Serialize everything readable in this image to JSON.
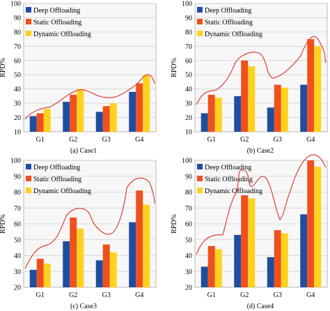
{
  "figure": {
    "panels": [
      {
        "caption": "(a) Case1"
      },
      {
        "caption": "(b) Case2"
      },
      {
        "caption": "(c) Case3"
      },
      {
        "caption": "(d) Case4"
      }
    ]
  },
  "chart_data": [
    {
      "type": "bar",
      "categories": [
        "G1",
        "G2",
        "G3",
        "G4"
      ],
      "series": [
        {
          "name": "Deep Offloading",
          "color": "#1f4e9e",
          "values": [
            21,
            31,
            24,
            38
          ]
        },
        {
          "name": "Static Offloading",
          "color": "#f0501e",
          "values": [
            23,
            36,
            28,
            44
          ]
        },
        {
          "name": "Dynamic Offloading",
          "color": "#ffd21e",
          "values": [
            26,
            40,
            30,
            50
          ]
        }
      ],
      "ylabel": "RPD%",
      "ylim": [
        10,
        100
      ],
      "yticks": [
        10,
        20,
        30,
        40,
        50,
        60,
        70,
        80,
        90,
        100
      ],
      "grid": true,
      "legend": "top-left",
      "caption": "(a) Case1"
    },
    {
      "type": "bar",
      "categories": [
        "G1",
        "G2",
        "G3",
        "G4"
      ],
      "series": [
        {
          "name": "Deep Offloading",
          "color": "#1f4e9e",
          "values": [
            23,
            35,
            27,
            43
          ]
        },
        {
          "name": "Static Offloading",
          "color": "#f0501e",
          "values": [
            36,
            60,
            43,
            75
          ]
        },
        {
          "name": "Dynamic Offloading",
          "color": "#ffd21e",
          "values": [
            34,
            56,
            41,
            70
          ]
        }
      ],
      "ylabel": "RPD%",
      "ylim": [
        10,
        100
      ],
      "yticks": [
        10,
        20,
        30,
        40,
        50,
        60,
        70,
        80,
        90,
        100
      ],
      "grid": true,
      "legend": "top-left",
      "caption": "(b) Case2"
    },
    {
      "type": "bar",
      "categories": [
        "G1",
        "G2",
        "G3",
        "G4"
      ],
      "series": [
        {
          "name": "Deep Offloading",
          "color": "#1f4e9e",
          "values": [
            31,
            49,
            37,
            61
          ]
        },
        {
          "name": "Static Offloading",
          "color": "#f0501e",
          "values": [
            38,
            64,
            47,
            81
          ]
        },
        {
          "name": "Dynamic Offloading",
          "color": "#ffd21e",
          "values": [
            35,
            57,
            42,
            72
          ]
        }
      ],
      "ylabel": "RPD%",
      "ylim": [
        20,
        100
      ],
      "yticks": [
        20,
        30,
        40,
        50,
        60,
        70,
        80,
        90,
        100
      ],
      "grid": true,
      "legend": "top-left",
      "caption": "(c) Case3"
    },
    {
      "type": "bar",
      "categories": [
        "G1",
        "G2",
        "G3",
        "G4"
      ],
      "series": [
        {
          "name": "Deep Offloading",
          "color": "#1f4e9e",
          "values": [
            33,
            53,
            39,
            66
          ]
        },
        {
          "name": "Static Offloading",
          "color": "#f0501e",
          "values": [
            46,
            78,
            56,
            100
          ]
        },
        {
          "name": "Dynamic Offloading",
          "color": "#ffd21e",
          "values": [
            44,
            76,
            54,
            96
          ]
        }
      ],
      "ylabel": "RPD%",
      "ylim": [
        20,
        100
      ],
      "yticks": [
        20,
        30,
        40,
        50,
        60,
        70,
        80,
        90,
        100
      ],
      "grid": true,
      "legend": "top-left",
      "caption": "(d) Case4"
    }
  ]
}
